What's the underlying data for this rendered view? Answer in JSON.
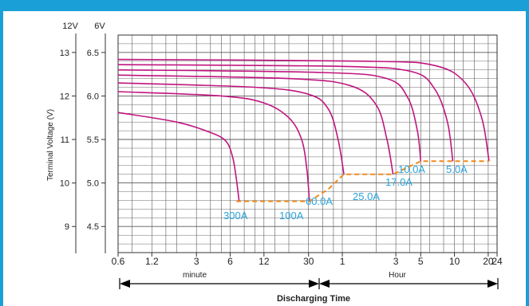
{
  "chart_data": {
    "type": "line",
    "title": "",
    "ylabel": "Terminal Voltage (V)",
    "xlabel": "Discharging Time",
    "x_units": [
      "minute",
      "Hour"
    ],
    "y_axis_12v": {
      "header": "12V",
      "ticks": [
        "13",
        "12",
        "11",
        "10",
        "9"
      ]
    },
    "y_axis_6v": {
      "header": "6V",
      "ticks": [
        "6.5",
        "6.0",
        "5.5",
        "5.0",
        "4.5"
      ]
    },
    "ylim_6v": [
      4.2,
      6.7
    ],
    "x_ticks": [
      "0.6",
      "1.2",
      "3",
      "6",
      "12",
      "30",
      "1",
      "3",
      "5",
      "10",
      "20",
      "24"
    ],
    "x_tick_minutes": [
      0.6,
      1.2,
      3,
      6,
      12,
      30,
      60,
      180,
      300,
      600,
      1200,
      1440
    ],
    "series": [
      {
        "name": "300A",
        "points": [
          [
            0.6,
            5.81
          ],
          [
            2,
            5.7
          ],
          [
            4,
            5.58
          ],
          [
            5.5,
            5.48
          ],
          [
            6.3,
            5.3
          ],
          [
            6.8,
            5.05
          ],
          [
            7.2,
            4.79
          ]
        ]
      },
      {
        "name": "100A",
        "points": [
          [
            0.6,
            6.05
          ],
          [
            5,
            6.0
          ],
          [
            12,
            5.92
          ],
          [
            20,
            5.75
          ],
          [
            26,
            5.5
          ],
          [
            29,
            5.15
          ],
          [
            30.5,
            4.79
          ]
        ]
      },
      {
        "name": "60.0A",
        "points": [
          [
            0.6,
            6.15
          ],
          [
            10,
            6.1
          ],
          [
            30,
            6.02
          ],
          [
            45,
            5.85
          ],
          [
            55,
            5.5
          ],
          [
            62,
            5.1
          ]
        ]
      },
      {
        "name": "25.0A",
        "points": [
          [
            0.6,
            6.24
          ],
          [
            20,
            6.2
          ],
          [
            70,
            6.12
          ],
          [
            120,
            5.9
          ],
          [
            150,
            5.5
          ],
          [
            170,
            5.1
          ]
        ]
      },
      {
        "name": "17.0A",
        "points": [
          [
            0.6,
            6.3
          ],
          [
            40,
            6.27
          ],
          [
            150,
            6.2
          ],
          [
            230,
            5.98
          ],
          [
            280,
            5.6
          ],
          [
            300,
            5.25
          ]
        ]
      },
      {
        "name": "10.0A",
        "points": [
          [
            0.6,
            6.36
          ],
          [
            60,
            6.34
          ],
          [
            250,
            6.28
          ],
          [
            400,
            6.08
          ],
          [
            520,
            5.7
          ],
          [
            580,
            5.25
          ]
        ]
      },
      {
        "name": "5.0A",
        "points": [
          [
            0.6,
            6.42
          ],
          [
            100,
            6.4
          ],
          [
            400,
            6.35
          ],
          [
            750,
            6.15
          ],
          [
            1050,
            5.75
          ],
          [
            1220,
            5.25
          ]
        ]
      }
    ],
    "cutoff_line": [
      [
        6.8,
        4.79
      ],
      [
        30.5,
        4.79
      ],
      [
        45,
        4.93
      ],
      [
        62,
        5.1
      ],
      [
        170,
        5.1
      ],
      [
        300,
        5.25
      ],
      [
        1220,
        5.25
      ]
    ],
    "grid": true,
    "colors": {
      "curve": "#c0157e",
      "cutoff": "#f08a1c",
      "label": "#2aa4dc",
      "banner": "#1aa0d6",
      "grid": "#5a5a5a"
    }
  }
}
